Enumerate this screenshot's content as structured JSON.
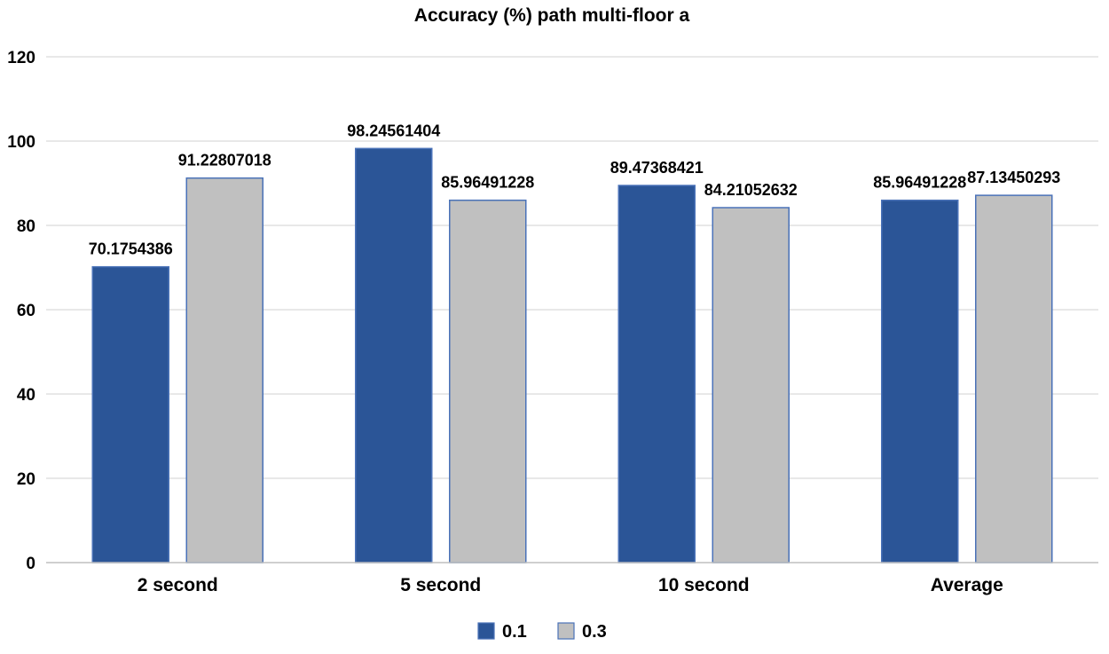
{
  "chart_data": {
    "type": "bar",
    "title": "Accuracy (%) path  multi-floor a",
    "xlabel": "",
    "ylabel": "",
    "categories": [
      "2 second",
      "5 second",
      "10 second",
      "Average"
    ],
    "series": [
      {
        "name": "0.1",
        "color": "#2b5597",
        "values": [
          70.1754386,
          98.24561404,
          89.47368421,
          85.96491228
        ],
        "labels": [
          "70.1754386",
          "98.24561404",
          "89.47368421",
          "85.96491228"
        ]
      },
      {
        "name": "0.3",
        "color": "#c0c0c0",
        "values": [
          91.22807018,
          85.96491228,
          84.21052632,
          87.13450293
        ],
        "labels": [
          "91.22807018",
          "85.96491228",
          "84.21052632",
          "87.13450293"
        ]
      }
    ],
    "ylim": [
      0,
      120
    ],
    "yticks": [
      0,
      20,
      40,
      60,
      80,
      100,
      120
    ],
    "grid": true,
    "legend_position": "bottom-center",
    "colors": {
      "grid": "#d9d9d9",
      "axis": "#bfbfbf",
      "text": "#000000",
      "bar_edge": "#4a72b8"
    }
  }
}
